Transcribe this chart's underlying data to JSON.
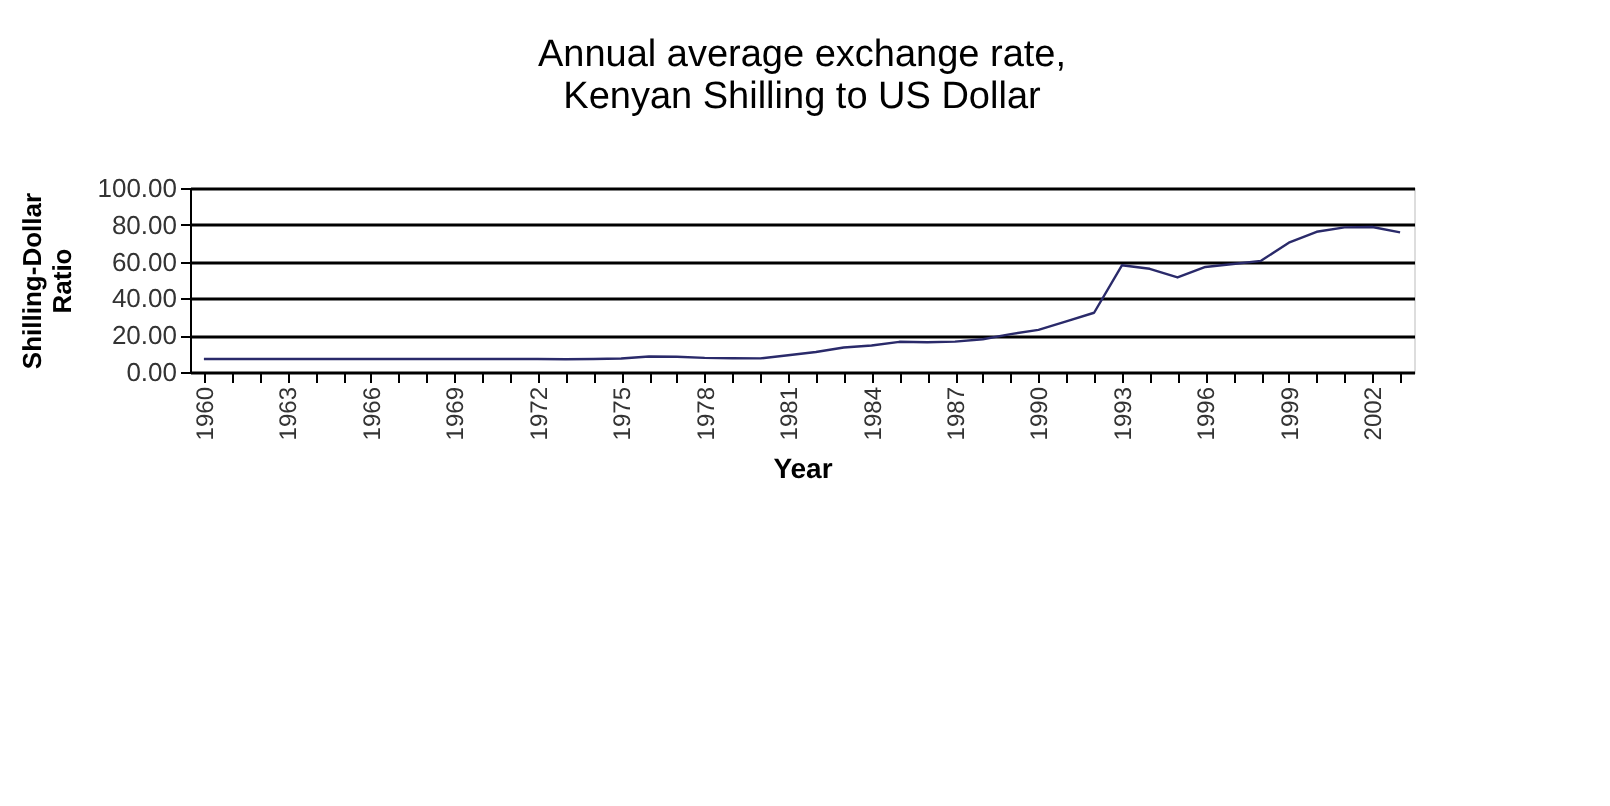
{
  "chart_data": {
    "type": "line",
    "title": "Annual average exchange rate,\nKenyan Shilling to US Dollar",
    "xlabel": "Year",
    "ylabel": "Shilling-Dollar\nRatio",
    "categories": [
      "1960",
      null,
      null,
      "1963",
      null,
      null,
      "1966",
      null,
      null,
      "1969",
      null,
      null,
      "1972",
      null,
      null,
      "1975",
      null,
      null,
      "1978",
      null,
      null,
      "1981",
      null,
      null,
      "1984",
      null,
      null,
      "1987",
      null,
      null,
      "1990",
      null,
      null,
      "1993",
      null,
      null,
      "1996",
      null,
      null,
      "1999",
      null,
      null,
      "2002",
      null
    ],
    "series": [
      {
        "color": "#2a2a6a",
        "values": [
          7.1,
          7.1,
          7.1,
          7.1,
          7.1,
          7.1,
          7.1,
          7.1,
          7.1,
          7.1,
          7.1,
          7.1,
          7.1,
          6.9,
          7.1,
          7.3,
          8.4,
          8.3,
          7.7,
          7.5,
          7.4,
          9.1,
          10.9,
          13.3,
          14.4,
          16.4,
          16.2,
          16.5,
          17.8,
          20.6,
          22.9,
          27.5,
          32.2,
          58.0,
          56.1,
          51.4,
          57.1,
          58.7,
          60.4,
          70.3,
          76.2,
          78.6,
          78.8,
          75.9
        ]
      }
    ],
    "ylim": [
      0,
      100
    ],
    "yticks": [
      {
        "value": 0,
        "label": "0.00"
      },
      {
        "value": 20,
        "label": "20.00"
      },
      {
        "value": 40,
        "label": "40.00"
      },
      {
        "value": 60,
        "label": "60.00"
      },
      {
        "value": 80,
        "label": "80.00"
      },
      {
        "value": 100,
        "label": "100.00"
      }
    ],
    "grid": "y",
    "legend": false
  }
}
